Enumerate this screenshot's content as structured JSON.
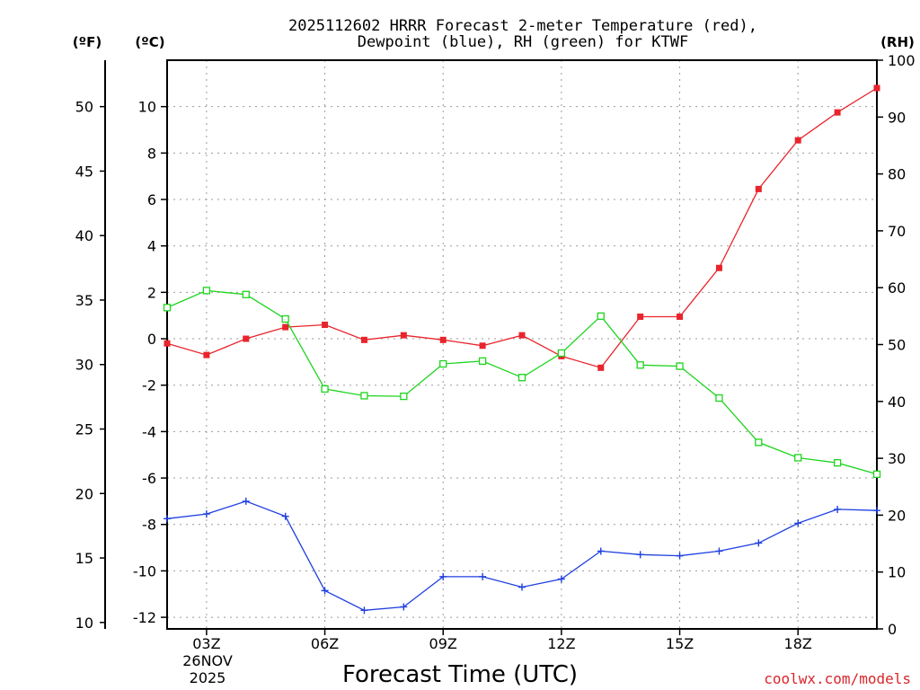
{
  "chart_data": {
    "type": "line",
    "title_line1": "2025112602 HRRR Forecast 2-meter Temperature (red),",
    "title_line2": "Dewpoint (blue), RH (green) for KTWF",
    "xlabel": "Forecast Time (UTC)",
    "credit": "coolwx.com/models",
    "unit_f": "(ºF)",
    "unit_c": "(ºC)",
    "unit_rh": "(RH)",
    "date_line1": "26NOV",
    "date_line2": "2025",
    "x_hours": [
      2,
      3,
      4,
      5,
      6,
      7,
      8,
      9,
      10,
      11,
      12,
      13,
      14,
      15,
      16,
      17,
      18,
      19,
      20
    ],
    "xlim": [
      2,
      20
    ],
    "x_ticks": [
      {
        "hour": 3,
        "label": "03Z"
      },
      {
        "hour": 6,
        "label": "06Z"
      },
      {
        "hour": 9,
        "label": "09Z"
      },
      {
        "hour": 12,
        "label": "12Z"
      },
      {
        "hour": 15,
        "label": "15Z"
      },
      {
        "hour": 18,
        "label": "18Z"
      }
    ],
    "ylim_c": [
      -12.5,
      12
    ],
    "y_ticks_c": [
      "-12",
      "-10",
      "-8",
      "-6",
      "-4",
      "-2",
      "0",
      "2",
      "4",
      "6",
      "8",
      "10"
    ],
    "y_ticks_f": [
      "10",
      "15",
      "20",
      "25",
      "30",
      "35",
      "40",
      "45",
      "50"
    ],
    "ylim_rh": [
      0,
      100
    ],
    "y_ticks_rh": [
      "0",
      "10",
      "20",
      "30",
      "40",
      "50",
      "60",
      "70",
      "80",
      "90",
      "100"
    ],
    "series": [
      {
        "name": "Temperature",
        "axis": "C",
        "color": "#e8242c",
        "marker": "filled-square",
        "values": [
          -0.2,
          -0.7,
          0.0,
          0.5,
          0.6,
          -0.05,
          0.15,
          -0.05,
          -0.3,
          0.15,
          -0.75,
          -1.25,
          0.95,
          0.95,
          3.05,
          6.45,
          8.55,
          9.75,
          10.8
        ]
      },
      {
        "name": "Dewpoint",
        "axis": "C",
        "color": "#1f3fe0",
        "marker": "plus",
        "values": [
          -7.75,
          -7.55,
          -7.0,
          -7.65,
          -10.85,
          -11.7,
          -11.55,
          -10.25,
          -10.25,
          -10.7,
          -10.35,
          -9.15,
          -9.3,
          -9.35,
          -9.15,
          -8.8,
          -7.95,
          -7.35,
          -7.4
        ]
      },
      {
        "name": "RH",
        "axis": "RH",
        "color": "#1ed41e",
        "marker": "open-square",
        "values": [
          56.5,
          59.5,
          58.8,
          54.5,
          42.2,
          41.0,
          40.9,
          46.6,
          47.1,
          44.2,
          48.5,
          55.0,
          46.4,
          46.2,
          40.6,
          32.8,
          30.1,
          29.2,
          27.2
        ]
      }
    ]
  }
}
